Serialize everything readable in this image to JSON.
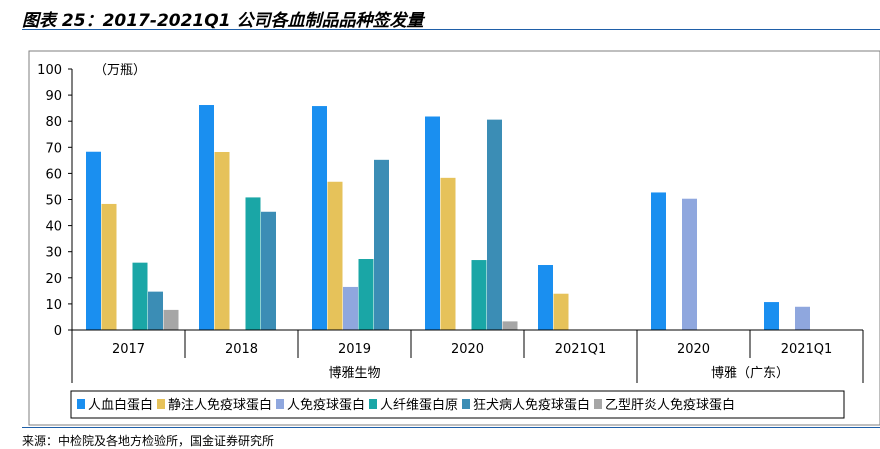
{
  "header": {
    "title": "图表 25：2017-2021Q1 公司各血制品品种签发量"
  },
  "footer": {
    "source": "来源：中检院及各地方检验所，国金证券研究所"
  },
  "colors": {
    "人血白蛋白": "#1a8ff0",
    "静注人免疫球蛋白": "#e6c25a",
    "人免疫球蛋白": "#8fa7de",
    "人纤维蛋白原": "#1aa6a6",
    "狂犬病人免疫球蛋白": "#3b8db5",
    "乙型肝炎人免疫球蛋白": "#a6a6a6"
  },
  "chart_data": {
    "type": "bar",
    "unit_label": "（万瓶）",
    "ylim": [
      0,
      100
    ],
    "yticks": [
      0,
      10,
      20,
      30,
      40,
      50,
      60,
      70,
      80,
      90,
      100
    ],
    "legend": [
      "人血白蛋白",
      "静注人免疫球蛋白",
      "人免疫球蛋白",
      "人纤维蛋白原",
      "狂犬病人免疫球蛋白",
      "乙型肝炎人免疫球蛋白"
    ],
    "legend_position": "bottom",
    "groups": [
      {
        "name": "博雅生物",
        "categories": [
          {
            "label": "2017",
            "bars": [
              {
                "series": "人血白蛋白",
                "value": 68.3
              },
              {
                "series": "静注人免疫球蛋白",
                "value": 48.3
              },
              {
                "series": "人纤维蛋白原",
                "value": 25.8
              },
              {
                "series": "狂犬病人免疫球蛋白",
                "value": 14.7
              },
              {
                "series": "乙型肝炎人免疫球蛋白",
                "value": 7.7
              }
            ]
          },
          {
            "label": "2018",
            "bars": [
              {
                "series": "人血白蛋白",
                "value": 86.2
              },
              {
                "series": "静注人免疫球蛋白",
                "value": 68.2
              },
              {
                "series": "人纤维蛋白原",
                "value": 50.8
              },
              {
                "series": "狂犬病人免疫球蛋白",
                "value": 45.3
              }
            ]
          },
          {
            "label": "2019",
            "bars": [
              {
                "series": "人血白蛋白",
                "value": 85.8
              },
              {
                "series": "静注人免疫球蛋白",
                "value": 56.8
              },
              {
                "series": "人免疫球蛋白",
                "value": 16.5
              },
              {
                "series": "人纤维蛋白原",
                "value": 27.2
              },
              {
                "series": "狂犬病人免疫球蛋白",
                "value": 65.2
              }
            ]
          },
          {
            "label": "2020",
            "bars": [
              {
                "series": "人血白蛋白",
                "value": 81.8
              },
              {
                "series": "静注人免疫球蛋白",
                "value": 58.3
              },
              {
                "series": "人纤维蛋白原",
                "value": 26.8
              },
              {
                "series": "狂犬病人免疫球蛋白",
                "value": 80.6
              },
              {
                "series": "乙型肝炎人免疫球蛋白",
                "value": 3.3
              }
            ]
          },
          {
            "label": "2021Q1",
            "bars": [
              {
                "series": "人血白蛋白",
                "value": 24.9
              },
              {
                "series": "静注人免疫球蛋白",
                "value": 13.9
              }
            ]
          }
        ]
      },
      {
        "name": "博雅（广东）",
        "categories": [
          {
            "label": "2020",
            "bars": [
              {
                "series": "人血白蛋白",
                "value": 52.7
              },
              {
                "series": "人免疫球蛋白",
                "value": 50.3
              }
            ]
          },
          {
            "label": "2021Q1",
            "bars": [
              {
                "series": "人血白蛋白",
                "value": 10.7
              },
              {
                "series": "人免疫球蛋白",
                "value": 8.9
              }
            ]
          }
        ]
      }
    ]
  }
}
